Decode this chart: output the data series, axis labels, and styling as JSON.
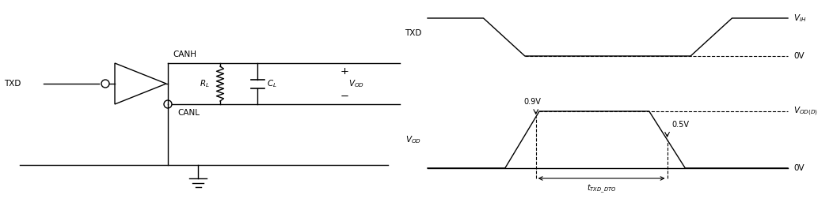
{
  "bg_color": "#ffffff",
  "line_color": "#000000",
  "fig_width": 10.52,
  "fig_height": 2.61,
  "dpi": 100,
  "circuit": {
    "txd_text": "TXD",
    "canh_text": "CANH",
    "canl_text": "CANL",
    "rl_text": "R",
    "cl_text": "C",
    "vod_text": "V",
    "plus_text": "+",
    "minus_text": "-"
  },
  "waveform": {
    "txd_label": "TXD",
    "vih_label": "V",
    "ov_label1": "0V",
    "vod_label": "V",
    "vod_d_label": "V",
    "ov_label2": "0V",
    "v09_label": "0.9V",
    "v05_label": "0.5V",
    "tdto_label": "t_TXD_DTO"
  }
}
